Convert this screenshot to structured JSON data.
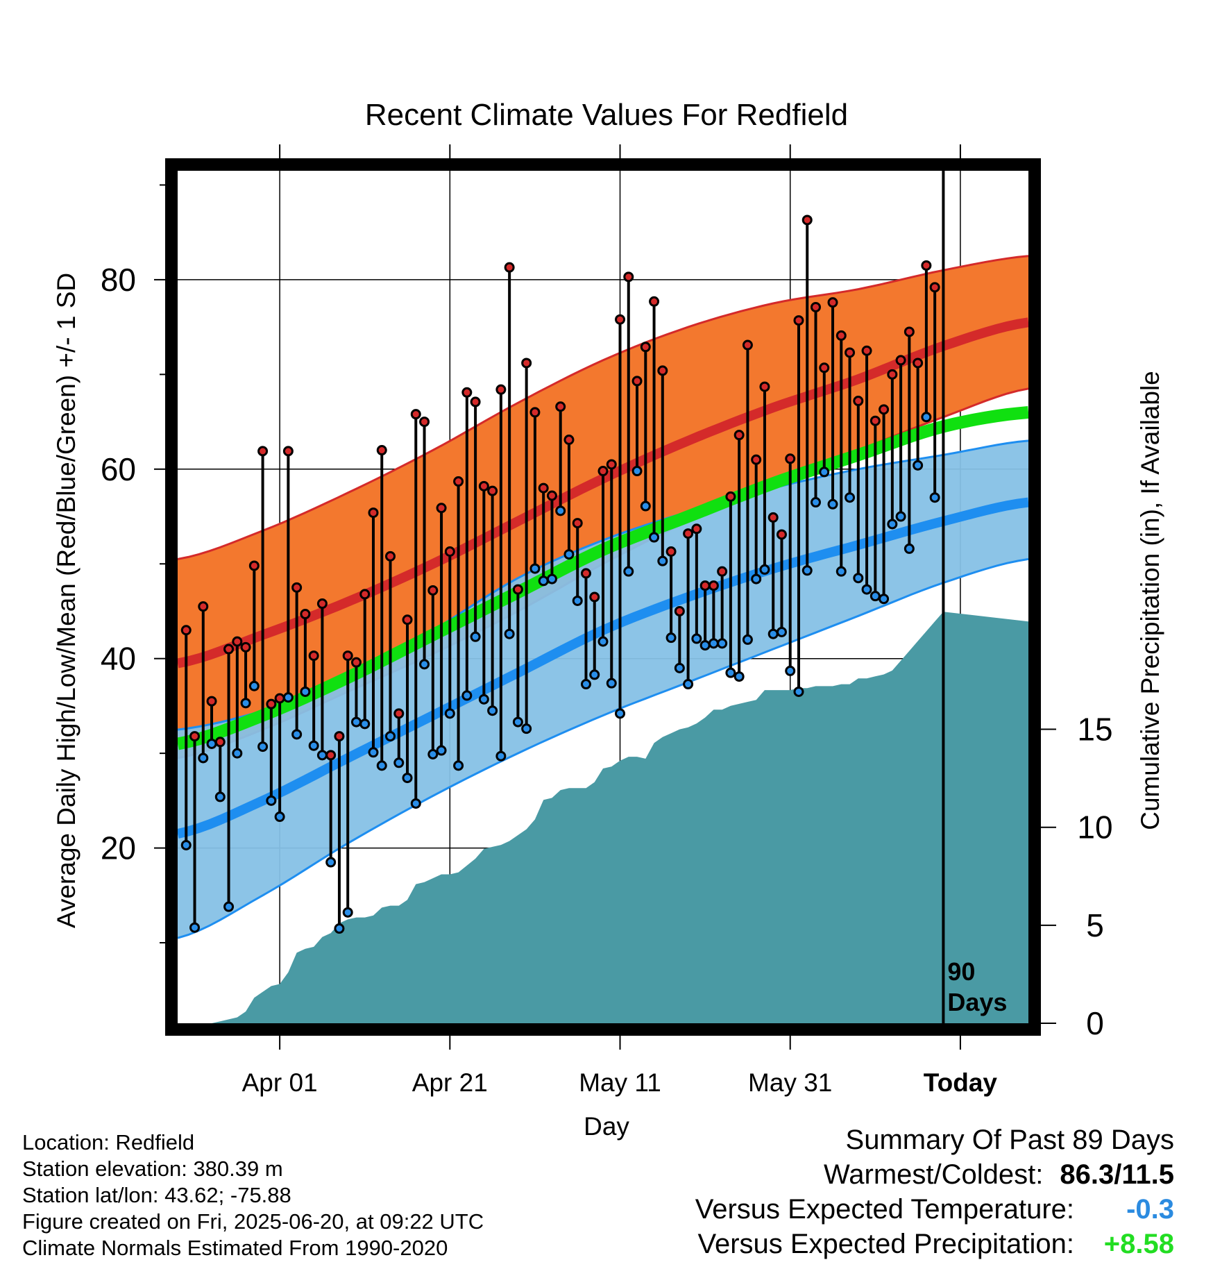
{
  "chart_data": {
    "type": "line",
    "title": "Recent Climate Values For Redfield",
    "xlabel": "Day",
    "ylabel_left": "Average Daily High/Low/Mean (Red/Blue/Green) +/- 1 SD",
    "ylabel_right": "Cumulative Precipitation (in), If Available",
    "x_tick_labels": [
      "Apr 01",
      "Apr 21",
      "May 11",
      "May 31",
      "Today"
    ],
    "y_ticks_left": [
      20,
      40,
      60,
      80
    ],
    "y_ticks_right": [
      0,
      5,
      10,
      15
    ],
    "xlim_days": [
      -90,
      10
    ],
    "ylim_left": [
      1.5,
      91.5
    ],
    "ylim_right": [
      0,
      43.5
    ],
    "today_marker_label": [
      "90",
      "Days"
    ],
    "colors": {
      "high_band": "#F3782E",
      "high_mean": "#D42A2A",
      "low_band": "#86C1E6",
      "low_mean": "#1E8EF0",
      "daily_mean": "#10E010",
      "precip": "#4A9AA4",
      "high_dot": "#D42A2A",
      "low_dot": "#2A8EE8"
    },
    "normals": {
      "x_days": [
        -90,
        -80,
        -70,
        -60,
        -50,
        -40,
        -30,
        -20,
        -10,
        0,
        10
      ],
      "high_mean": [
        39.5,
        42.5,
        46.0,
        50.0,
        54.5,
        59.0,
        63.0,
        66.5,
        69.5,
        73.0,
        75.5
      ],
      "high_upper": [
        50.5,
        53.5,
        57.5,
        62.0,
        67.0,
        71.5,
        75.0,
        77.5,
        79.0,
        81.0,
        82.5
      ],
      "high_lower": [
        29.5,
        32.5,
        36.5,
        40.5,
        45.0,
        50.0,
        54.5,
        58.5,
        62.0,
        65.5,
        68.5
      ],
      "daily_mean": [
        31.0,
        34.0,
        38.0,
        42.5,
        47.0,
        51.5,
        55.0,
        58.5,
        61.5,
        64.5,
        66.0
      ],
      "low_mean": [
        21.5,
        25.0,
        29.5,
        34.0,
        38.5,
        43.0,
        46.5,
        49.5,
        52.0,
        54.5,
        56.5
      ],
      "low_upper": [
        32.5,
        34.5,
        38.0,
        43.0,
        48.5,
        52.5,
        55.5,
        58.0,
        60.0,
        61.5,
        63.0
      ],
      "low_lower": [
        10.5,
        15.0,
        20.5,
        25.5,
        30.0,
        34.0,
        37.5,
        41.0,
        44.5,
        48.0,
        50.5
      ]
    },
    "daily_days": [
      -89,
      -88,
      -87,
      -86,
      -85,
      -84,
      -83,
      -82,
      -81,
      -80,
      -79,
      -78,
      -77,
      -76,
      -75,
      -74,
      -73,
      -72,
      -71,
      -70,
      -69,
      -68,
      -67,
      -66,
      -65,
      -64,
      -63,
      -62,
      -61,
      -60,
      -59,
      -58,
      -57,
      -56,
      -55,
      -54,
      -53,
      -52,
      -51,
      -50,
      -49,
      -48,
      -47,
      -46,
      -45,
      -44,
      -43,
      -42,
      -41,
      -40,
      -39,
      -38,
      -37,
      -36,
      -35,
      -34,
      -33,
      -32,
      -31,
      -30,
      -29,
      -28,
      -27,
      -26,
      -25,
      -24,
      -23,
      -22,
      -21,
      -20,
      -19,
      -18,
      -17,
      -16,
      -15,
      -14,
      -13,
      -12,
      -11,
      -10,
      -9,
      -8,
      -7,
      -6,
      -5,
      -4,
      -3,
      -2,
      -1
    ],
    "daily_high": [
      43.0,
      31.8,
      45.5,
      35.5,
      31.2,
      41.0,
      41.8,
      41.2,
      49.8,
      61.9,
      35.2,
      35.8,
      61.9,
      47.5,
      44.7,
      40.3,
      45.8,
      29.8,
      31.8,
      40.3,
      39.6,
      46.8,
      55.4,
      62.0,
      50.8,
      34.2,
      44.1,
      65.8,
      65.0,
      47.2,
      55.9,
      51.3,
      58.7,
      68.1,
      67.1,
      58.2,
      57.7,
      68.4,
      81.3,
      47.3,
      71.2,
      66.0,
      58.0,
      57.2,
      66.6,
      63.1,
      54.3,
      49.0,
      46.5,
      59.8,
      60.5,
      75.8,
      80.3,
      69.3,
      72.9,
      77.7,
      70.4,
      51.3,
      45.0,
      53.2,
      53.7,
      47.7,
      47.7,
      49.2,
      57.1,
      63.6,
      73.1,
      61.0,
      68.7,
      54.9,
      53.1,
      61.1,
      75.7,
      86.3,
      77.1,
      70.7,
      77.6,
      74.1,
      72.3,
      67.2,
      72.5,
      65.1,
      66.3,
      70.0,
      71.5,
      74.5,
      71.2,
      81.5,
      79.2
    ],
    "daily_low": [
      20.3,
      11.6,
      29.5,
      31.0,
      25.4,
      13.8,
      30.0,
      35.3,
      37.1,
      30.7,
      25.0,
      23.3,
      35.9,
      32.0,
      36.5,
      30.8,
      29.8,
      18.5,
      11.5,
      13.2,
      33.3,
      33.1,
      30.1,
      28.7,
      31.8,
      29.0,
      27.4,
      24.7,
      39.4,
      29.9,
      30.3,
      34.2,
      28.7,
      36.1,
      42.3,
      35.7,
      34.5,
      29.7,
      42.6,
      33.3,
      32.6,
      49.5,
      48.2,
      48.4,
      55.6,
      51.0,
      46.1,
      37.3,
      38.3,
      41.8,
      37.4,
      34.2,
      49.2,
      59.8,
      56.1,
      52.8,
      50.3,
      42.2,
      39.0,
      37.3,
      42.1,
      41.4,
      41.6,
      41.6,
      38.5,
      38.1,
      42.0,
      48.4,
      49.4,
      42.6,
      42.8,
      38.7,
      36.5,
      49.3,
      56.5,
      59.7,
      56.3,
      49.2,
      57.0,
      48.5,
      47.3,
      46.6,
      46.3,
      54.2,
      55.0,
      51.6,
      60.4,
      65.5,
      57.0
    ],
    "precip_days": [
      -90,
      -89,
      -86,
      -85,
      -83,
      -82,
      -81,
      -80,
      -79,
      -78,
      -77,
      -76,
      -75,
      -74,
      -73,
      -72,
      -71,
      -70,
      -69,
      -68,
      -67,
      -66,
      -65,
      -64,
      -63,
      -62,
      -61,
      -60,
      -59,
      -58,
      -57,
      -55,
      -54,
      -53,
      -52,
      -51,
      -49,
      -48,
      -47,
      -46,
      -45,
      -44,
      -43,
      -42,
      -41,
      -40,
      -39,
      -38,
      -37,
      -36,
      -35,
      -34,
      -33,
      -32,
      -31,
      -30,
      -29,
      -28,
      -27,
      -26,
      -25,
      -24,
      -23,
      -22,
      -21,
      -20,
      -19,
      -18,
      -17,
      -16,
      -15,
      -14,
      -13,
      -12,
      -11,
      -10,
      -9,
      -8,
      -7,
      -6,
      -5,
      -4,
      -3,
      -2,
      -1,
      0,
      10
    ],
    "precip_cum": [
      0.0,
      0.0,
      0.0,
      0.1,
      0.3,
      0.6,
      1.3,
      1.6,
      1.9,
      2.0,
      2.6,
      3.6,
      3.8,
      3.9,
      4.4,
      4.6,
      5.1,
      5.3,
      5.4,
      5.4,
      5.5,
      5.9,
      6.0,
      6.0,
      6.3,
      7.1,
      7.2,
      7.4,
      7.6,
      7.6,
      7.7,
      8.4,
      8.9,
      9.0,
      9.1,
      9.3,
      9.9,
      10.4,
      11.4,
      11.5,
      11.9,
      12.0,
      12.0,
      12.0,
      12.3,
      13.0,
      13.1,
      13.4,
      13.6,
      13.6,
      13.5,
      14.3,
      14.6,
      14.8,
      15.0,
      15.1,
      15.3,
      15.6,
      16.0,
      16.0,
      16.2,
      16.3,
      16.4,
      16.5,
      17.0,
      17.0,
      17.0,
      17.0,
      17.1,
      17.1,
      17.2,
      17.2,
      17.2,
      17.3,
      17.3,
      17.6,
      17.6,
      17.7,
      17.8,
      18.0,
      18.5,
      19.0,
      19.5,
      20.0,
      20.5,
      21.0,
      20.5
    ]
  },
  "footer": {
    "location": "Location: Redfield",
    "elevation": "Station elevation: 380.39 m",
    "latlon": "Station lat/lon: 43.62; -75.88",
    "created": "Figure created on Fri, 2025-06-20, at 09:22 UTC",
    "normals": "Climate Normals Estimated From 1990-2020"
  },
  "summary": {
    "heading": "Summary Of Past 89 Days",
    "warmest_coldest_label": "Warmest/Coldest:",
    "warmest_coldest_value": "86.3/11.5",
    "temp_label": "Versus Expected Temperature:",
    "temp_value": "-0.3",
    "temp_color": "#2B8BE0",
    "precip_label": "Versus Expected Precipitation:",
    "precip_value": "+8.58",
    "precip_color": "#22DD22"
  }
}
